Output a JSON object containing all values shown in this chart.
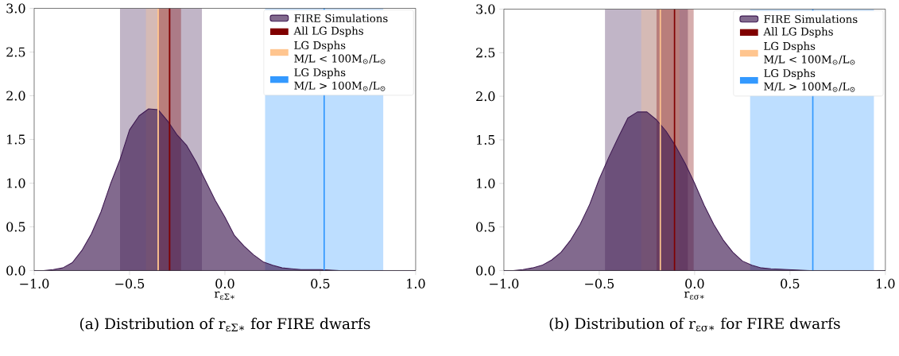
{
  "chart_data": [
    {
      "type": "area",
      "title": "(a) Distribution of r$_{εΣ∗}$ for FIRE dwarfs",
      "xlabel": "r$_{εΣ∗}$",
      "x": [
        -1,
        -0.95,
        -0.9,
        -0.85,
        -0.8,
        -0.75,
        -0.7,
        -0.65,
        -0.6,
        -0.55,
        -0.5,
        -0.45,
        -0.4,
        -0.35,
        -0.3,
        -0.25,
        -0.2,
        -0.15,
        -0.1,
        -0.05,
        0,
        0.05,
        0.1,
        0.15,
        0.2,
        0.25,
        0.3,
        0.35,
        0.4,
        0.5,
        0.6,
        0.8,
        1
      ],
      "series": [
        {
          "name": "FIRE Simulations",
          "color": "#3f1a52",
          "values": [
            0,
            0,
            0.01,
            0.03,
            0.09,
            0.23,
            0.42,
            0.67,
            0.99,
            1.27,
            1.61,
            1.77,
            1.85,
            1.84,
            1.71,
            1.55,
            1.43,
            1.24,
            1.02,
            0.8,
            0.61,
            0.4,
            0.28,
            0.18,
            0.1,
            0.06,
            0.03,
            0.02,
            0.01,
            0.01,
            0,
            0,
            0
          ]
        },
        {
          "name": "All LG Dsphs",
          "type": "line",
          "color": "#800000",
          "x": [
            -0.29,
            -0.29
          ],
          "values": [
            0,
            3
          ]
        },
        {
          "name": "LG Dsphs M/L < 100M$_{⊙}$/L$_{⊙}$",
          "type": "line",
          "color": "#ffc58f",
          "x": [
            -0.35,
            -0.35
          ],
          "values": [
            0,
            3
          ]
        },
        {
          "name": "LG Dsphs M/L > 100M$_{⊙}$/L$_{⊙}$",
          "type": "line",
          "color": "#3399ff",
          "x": [
            0.52,
            0.52
          ],
          "values": [
            0,
            3
          ]
        }
      ],
      "bands": [
        {
          "axis": "x",
          "from": -0.55,
          "to": -0.12,
          "color": "#3f1a52"
        },
        {
          "axis": "x",
          "from": -0.415,
          "to": -0.29,
          "color": "#ffc58f"
        },
        {
          "axis": "x",
          "from": -0.35,
          "to": -0.23,
          "color": "#800000"
        },
        {
          "axis": "x",
          "from": 0.21,
          "to": 0.83,
          "color": "#3399ff"
        }
      ],
      "xlim": [
        -1,
        1
      ],
      "ylim": [
        0,
        3
      ],
      "xticks": [
        {
          "value": -1,
          "label": "−1.0"
        },
        {
          "value": -0.5,
          "label": "−0.5"
        },
        {
          "value": 0,
          "label": "0.0"
        },
        {
          "value": 0.5,
          "label": "0.5"
        },
        {
          "value": 1,
          "label": "1.0"
        }
      ],
      "yticks": [
        {
          "value": 0,
          "label": "0.0"
        },
        {
          "value": 0.5,
          "label": "0.5"
        },
        {
          "value": 1,
          "label": "1.0"
        },
        {
          "value": 1.5,
          "label": "1.5"
        },
        {
          "value": 2,
          "label": "2.0"
        },
        {
          "value": 2.5,
          "label": "2.5"
        },
        {
          "value": 3,
          "label": "3.0"
        }
      ],
      "legend": "top right"
    },
    {
      "type": "area",
      "title": "(b) Distribution of r$_{εσ∗}$ for FIRE dwarfs",
      "xlabel": "r$_{εσ∗}$",
      "x": [
        -1,
        -0.95,
        -0.9,
        -0.85,
        -0.8,
        -0.75,
        -0.7,
        -0.65,
        -0.6,
        -0.55,
        -0.5,
        -0.45,
        -0.4,
        -0.35,
        -0.3,
        -0.25,
        -0.2,
        -0.15,
        -0.1,
        -0.05,
        0,
        0.05,
        0.1,
        0.15,
        0.2,
        0.25,
        0.3,
        0.35,
        0.4,
        0.5,
        0.6,
        0.8,
        1
      ],
      "series": [
        {
          "name": "FIRE Simulations",
          "color": "#3f1a52",
          "values": [
            0,
            0,
            0.01,
            0.03,
            0.06,
            0.12,
            0.21,
            0.35,
            0.53,
            0.76,
            1.05,
            1.3,
            1.53,
            1.75,
            1.82,
            1.82,
            1.73,
            1.6,
            1.43,
            1.23,
            1.0,
            0.75,
            0.53,
            0.35,
            0.21,
            0.11,
            0.06,
            0.03,
            0.02,
            0.01,
            0,
            0,
            0
          ]
        },
        {
          "name": "All LG Dsphs",
          "type": "line",
          "color": "#800000",
          "x": [
            -0.105,
            -0.105
          ],
          "values": [
            0,
            3
          ]
        },
        {
          "name": "LG Dsphs M/L < 100M$_{⊙}$/L$_{⊙}$",
          "type": "line",
          "color": "#ffc58f",
          "x": [
            -0.18,
            -0.18
          ],
          "values": [
            0,
            3
          ]
        },
        {
          "name": "LG Dsphs M/L > 100M$_{⊙}$/L$_{⊙}$",
          "type": "line",
          "color": "#3399ff",
          "x": [
            0.62,
            0.62
          ],
          "values": [
            0,
            3
          ]
        }
      ],
      "bands": [
        {
          "axis": "x",
          "from": -0.47,
          "to": -0.035,
          "color": "#3f1a52"
        },
        {
          "axis": "x",
          "from": -0.28,
          "to": -0.08,
          "color": "#ffc58f"
        },
        {
          "axis": "x",
          "from": -0.2,
          "to": -0.005,
          "color": "#800000"
        },
        {
          "axis": "x",
          "from": 0.29,
          "to": 0.94,
          "color": "#3399ff"
        }
      ],
      "xlim": [
        -1,
        1
      ],
      "ylim": [
        0,
        3
      ],
      "xticks": [
        {
          "value": -1,
          "label": "−1.0"
        },
        {
          "value": -0.5,
          "label": "−0.5"
        },
        {
          "value": 0,
          "label": "0.0"
        },
        {
          "value": 0.5,
          "label": "0.5"
        },
        {
          "value": 1,
          "label": "1.0"
        }
      ],
      "yticks": [
        {
          "value": 0,
          "label": "0.0"
        },
        {
          "value": 0.5,
          "label": "0.5"
        },
        {
          "value": 1,
          "label": "1.0"
        },
        {
          "value": 1.5,
          "label": "1.5"
        },
        {
          "value": 2,
          "label": "2.0"
        },
        {
          "value": 2.5,
          "label": "2.5"
        },
        {
          "value": 3,
          "label": "3.0"
        }
      ],
      "legend": "top right"
    }
  ]
}
